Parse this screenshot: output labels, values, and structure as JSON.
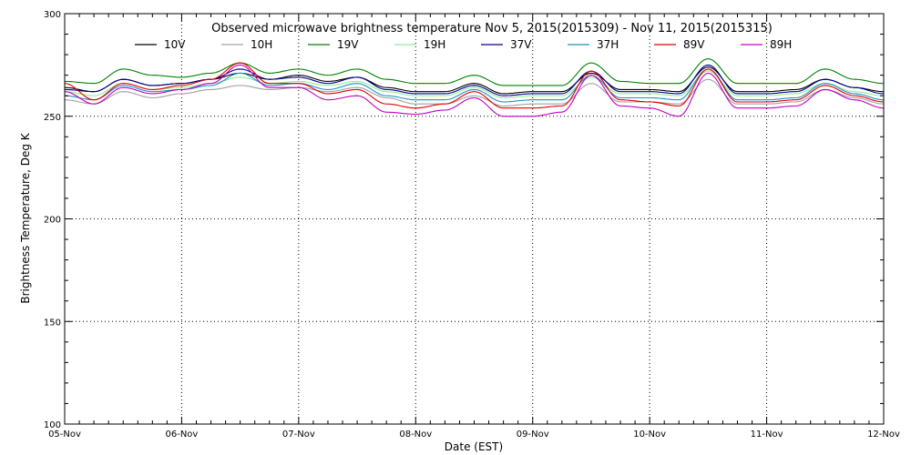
{
  "chart_data": {
    "type": "line",
    "title": "Observed microwave brightness temperature Nov  5, 2015(2015309) - Nov 11, 2015(2015315)",
    "xlabel": "Date (EST)",
    "ylabel": "Brightness Temperature, Deg K",
    "x_ticks": [
      "05-Nov",
      "06-Nov",
      "07-Nov",
      "08-Nov",
      "09-Nov",
      "10-Nov",
      "11-Nov",
      "12-Nov"
    ],
    "xlim": [
      0,
      7
    ],
    "ylim": [
      100,
      300
    ],
    "y_ticks": [
      100,
      150,
      200,
      250,
      300
    ],
    "grid": true,
    "legend_position": "top",
    "x": [
      0,
      0.25,
      0.5,
      0.75,
      1.0,
      1.25,
      1.5,
      1.75,
      2.0,
      2.25,
      2.5,
      2.75,
      3.0,
      3.25,
      3.5,
      3.75,
      4.0,
      4.25,
      4.5,
      4.75,
      5.0,
      5.25,
      5.5,
      5.75,
      6.0,
      6.25,
      6.5,
      6.75,
      7.0
    ],
    "series": [
      {
        "name": "10V",
        "color": "#000000",
        "values": [
          264,
          262,
          268,
          265,
          266,
          268,
          271,
          268,
          270,
          267,
          269,
          264,
          262,
          262,
          266,
          261,
          262,
          262,
          271,
          263,
          263,
          262,
          274,
          262,
          262,
          263,
          268,
          264,
          262
        ]
      },
      {
        "name": "10H",
        "color": "#a0a0a0",
        "values": [
          258,
          256,
          262,
          259,
          261,
          263,
          265,
          263,
          264,
          262,
          264,
          259,
          256,
          256,
          260,
          255,
          256,
          256,
          266,
          257,
          257,
          256,
          268,
          256,
          256,
          257,
          263,
          259,
          256
        ]
      },
      {
        "name": "19V",
        "color": "#008000",
        "values": [
          267,
          266,
          273,
          270,
          269,
          271,
          276,
          271,
          273,
          270,
          273,
          268,
          266,
          266,
          270,
          265,
          265,
          265,
          276,
          267,
          266,
          266,
          278,
          266,
          266,
          266,
          273,
          268,
          266
        ]
      },
      {
        "name": "19H",
        "color": "#90ee90",
        "values": [
          262,
          260,
          266,
          263,
          264,
          266,
          269,
          266,
          267,
          265,
          267,
          262,
          260,
          260,
          264,
          259,
          260,
          260,
          269,
          261,
          261,
          260,
          272,
          260,
          260,
          261,
          266,
          262,
          260
        ]
      },
      {
        "name": "37V",
        "color": "#00008b",
        "values": [
          263,
          262,
          268,
          265,
          266,
          268,
          273,
          268,
          269,
          266,
          269,
          263,
          261,
          261,
          265,
          260,
          261,
          261,
          272,
          262,
          262,
          261,
          275,
          261,
          261,
          262,
          268,
          264,
          261
        ]
      },
      {
        "name": "37H",
        "color": "#1e90c8",
        "values": [
          260,
          258,
          265,
          262,
          263,
          265,
          271,
          265,
          266,
          263,
          266,
          260,
          258,
          258,
          263,
          257,
          258,
          258,
          270,
          259,
          259,
          258,
          273,
          258,
          258,
          259,
          266,
          261,
          258
        ]
      },
      {
        "name": "89V",
        "color": "#e00000",
        "values": [
          266,
          258,
          266,
          263,
          265,
          268,
          276,
          266,
          266,
          261,
          263,
          256,
          254,
          256,
          262,
          254,
          254,
          255,
          272,
          258,
          257,
          255,
          273,
          257,
          257,
          258,
          265,
          260,
          257
        ]
      },
      {
        "name": "89H",
        "color": "#c000c0",
        "values": [
          262,
          256,
          264,
          261,
          263,
          266,
          275,
          264,
          264,
          258,
          260,
          252,
          251,
          253,
          259,
          250,
          250,
          252,
          270,
          255,
          254,
          250,
          271,
          254,
          254,
          255,
          263,
          258,
          254
        ]
      }
    ]
  }
}
